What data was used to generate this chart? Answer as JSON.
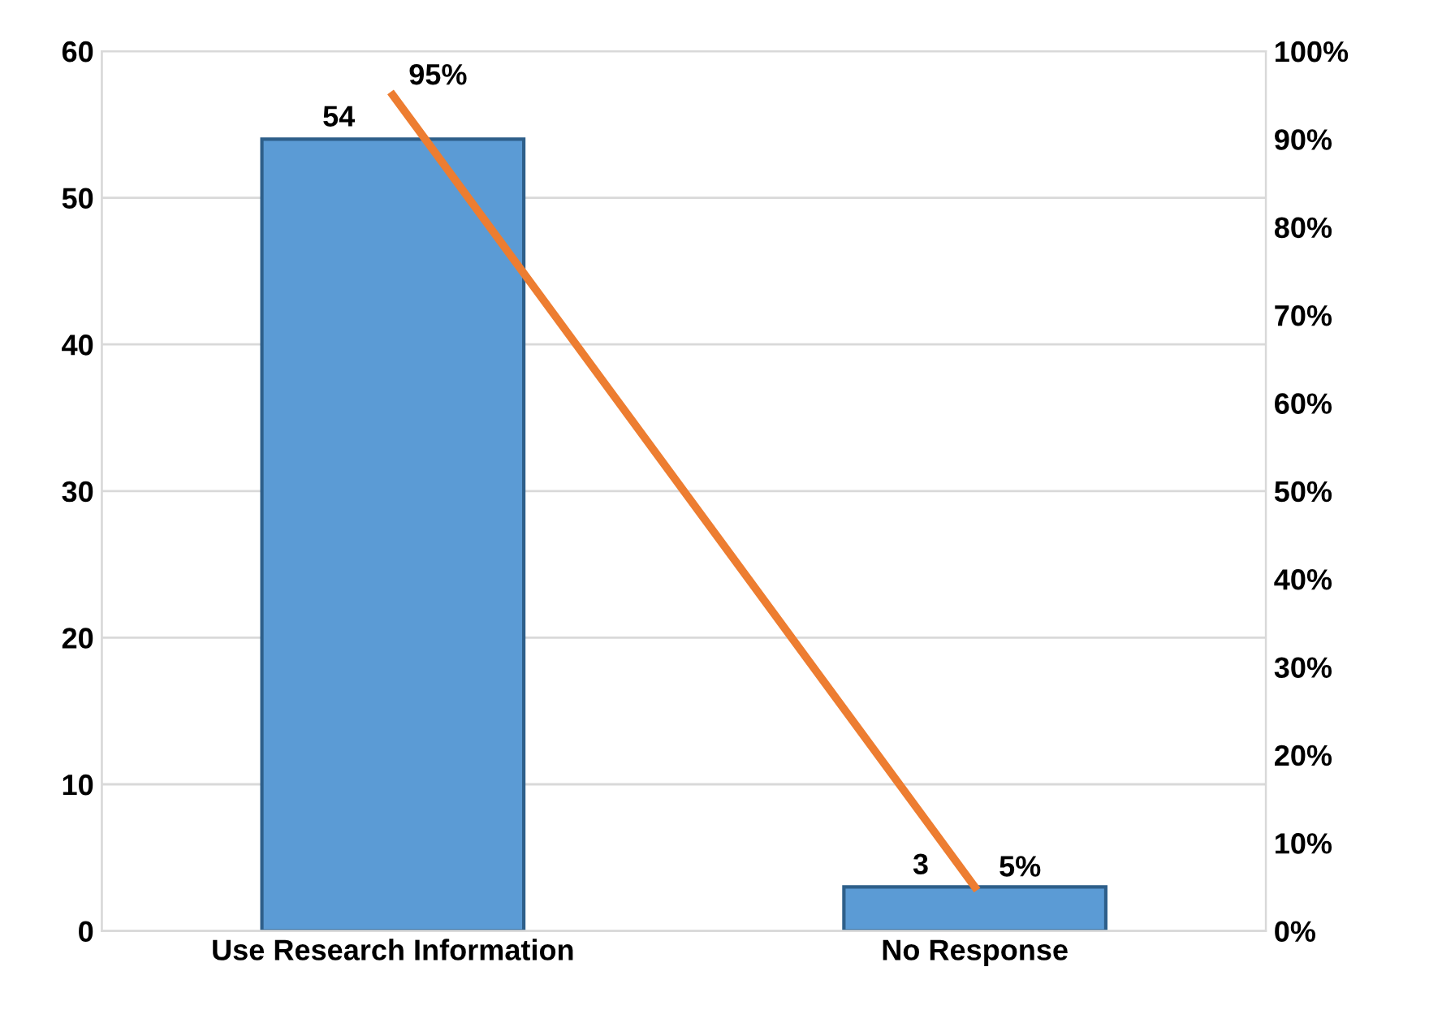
{
  "chart_data": {
    "type": "bar",
    "categories": [
      "Use Research Information",
      "No Response"
    ],
    "series": [
      {
        "color": "#5b9bd5",
        "values": [
          54,
          3
        ],
        "value_labels": [
          "54",
          "3"
        ]
      },
      {
        "type": "line",
        "axis": "y2",
        "color": "#ed7d31",
        "values": [
          95,
          5
        ],
        "value_labels": [
          "95%",
          "5%"
        ],
        "marker": "none",
        "line_style": "solid"
      }
    ],
    "ylim": [
      0,
      60
    ],
    "yticks": [
      0,
      10,
      20,
      30,
      40,
      50,
      60
    ],
    "y2lim": [
      0,
      100
    ],
    "y2ticks": [
      {
        "value": 0,
        "label": "0%"
      },
      {
        "value": 10,
        "label": "10%"
      },
      {
        "value": 20,
        "label": "20%"
      },
      {
        "value": 30,
        "label": "30%"
      },
      {
        "value": 40,
        "label": "40%"
      },
      {
        "value": 50,
        "label": "50%"
      },
      {
        "value": 60,
        "label": "60%"
      },
      {
        "value": 70,
        "label": "70%"
      },
      {
        "value": 80,
        "label": "80%"
      },
      {
        "value": 90,
        "label": "90%"
      },
      {
        "value": 100,
        "label": "100%"
      }
    ],
    "grid": "y"
  }
}
